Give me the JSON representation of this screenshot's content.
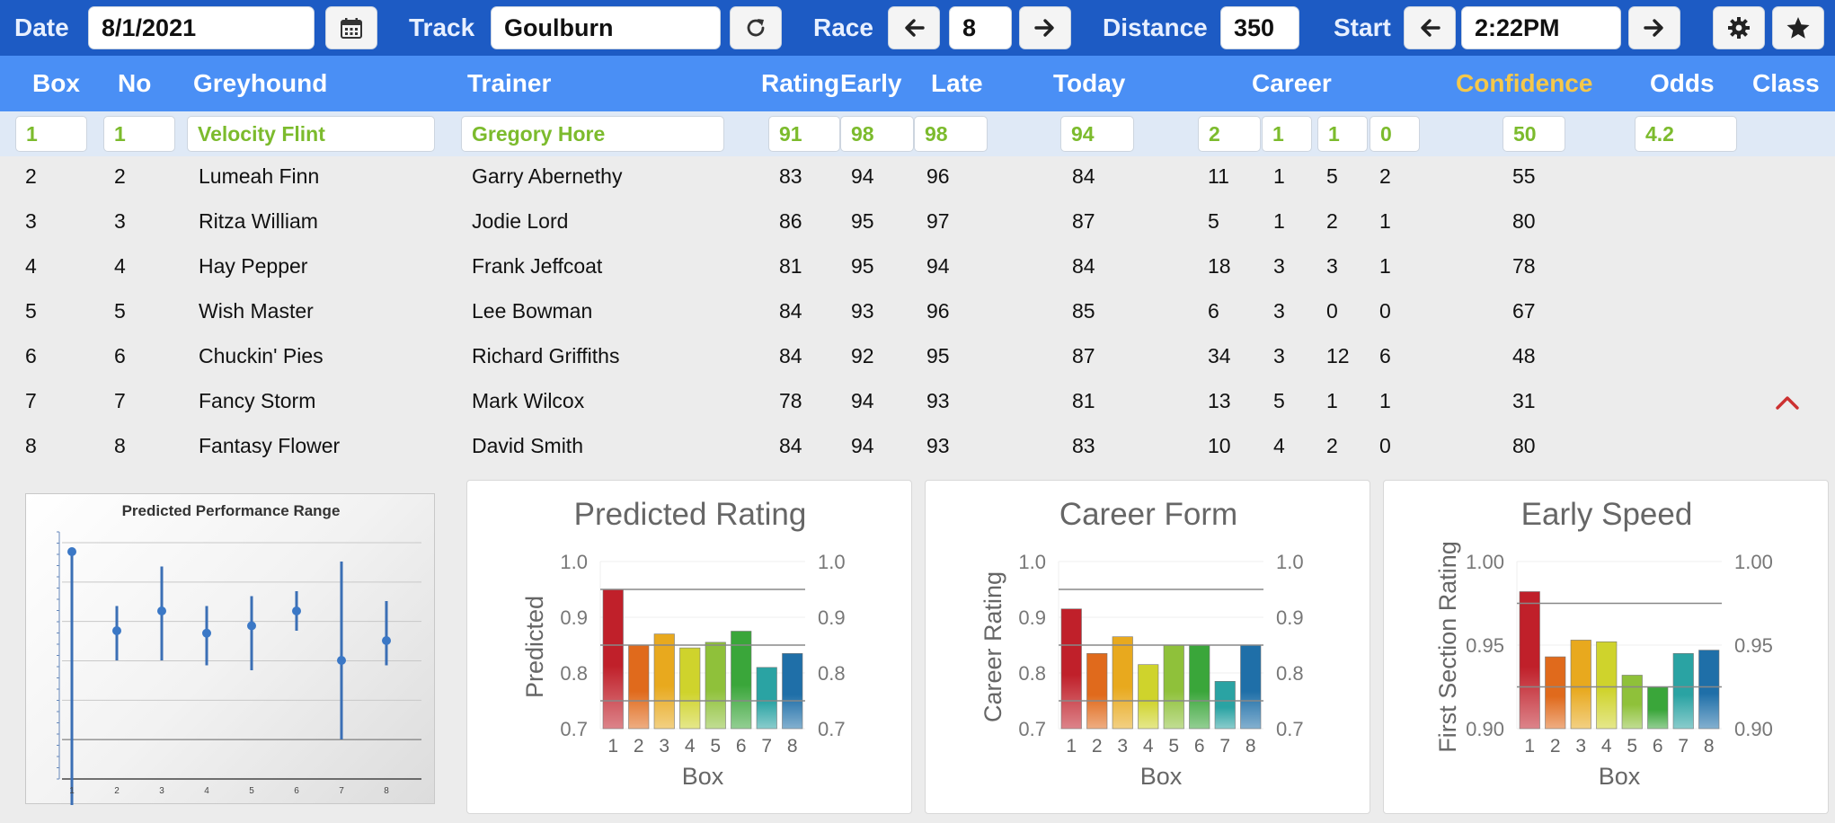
{
  "toolbar": {
    "date_label": "Date",
    "date_value": "8/1/2021",
    "track_label": "Track",
    "track_value": "Goulburn",
    "race_label": "Race",
    "race_value": "8",
    "distance_label": "Distance",
    "distance_value": "350",
    "start_label": "Start",
    "start_value": "2:22PM",
    "icons": [
      "calendar-icon",
      "refresh-icon",
      "arrow-left-icon",
      "arrow-right-icon",
      "gear-icon",
      "star-icon"
    ]
  },
  "columns": {
    "box": "Box",
    "no": "No",
    "greyhound": "Greyhound",
    "trainer": "Trainer",
    "rating": "Rating",
    "early": "Early",
    "late": "Late",
    "today": "Today",
    "career": "Career",
    "confidence": "Confidence",
    "odds": "Odds",
    "class": "Class"
  },
  "runners": [
    {
      "box": "1",
      "no": "1",
      "name": "Velocity Flint",
      "trainer": "Gregory Hore",
      "rating": "91",
      "early": "98",
      "late": "98",
      "today": "94",
      "career": [
        "2",
        "1",
        "1",
        "0"
      ],
      "confidence": "50",
      "odds": "4.2"
    },
    {
      "box": "2",
      "no": "2",
      "name": "Lumeah Finn",
      "trainer": "Garry Abernethy",
      "rating": "83",
      "early": "94",
      "late": "96",
      "today": "84",
      "career": [
        "11",
        "1",
        "5",
        "2"
      ],
      "confidence": "55",
      "odds": ""
    },
    {
      "box": "3",
      "no": "3",
      "name": "Ritza William",
      "trainer": "Jodie Lord",
      "rating": "86",
      "early": "95",
      "late": "97",
      "today": "87",
      "career": [
        "5",
        "1",
        "2",
        "1"
      ],
      "confidence": "80",
      "odds": ""
    },
    {
      "box": "4",
      "no": "4",
      "name": "Hay Pepper",
      "trainer": "Frank Jeffcoat",
      "rating": "81",
      "early": "95",
      "late": "94",
      "today": "84",
      "career": [
        "18",
        "3",
        "3",
        "1"
      ],
      "confidence": "78",
      "odds": ""
    },
    {
      "box": "5",
      "no": "5",
      "name": "Wish Master",
      "trainer": "Lee Bowman",
      "rating": "84",
      "early": "93",
      "late": "96",
      "today": "85",
      "career": [
        "6",
        "3",
        "0",
        "0"
      ],
      "confidence": "67",
      "odds": ""
    },
    {
      "box": "6",
      "no": "6",
      "name": "Chuckin' Pies",
      "trainer": "Richard Griffiths",
      "rating": "84",
      "early": "92",
      "late": "95",
      "today": "87",
      "career": [
        "34",
        "3",
        "12",
        "6"
      ],
      "confidence": "48",
      "odds": ""
    },
    {
      "box": "7",
      "no": "7",
      "name": "Fancy Storm",
      "trainer": "Mark Wilcox",
      "rating": "78",
      "early": "94",
      "late": "93",
      "today": "81",
      "career": [
        "13",
        "5",
        "1",
        "1"
      ],
      "confidence": "31",
      "odds": ""
    },
    {
      "box": "8",
      "no": "8",
      "name": "Fantasy Flower",
      "trainer": "David Smith",
      "rating": "84",
      "early": "94",
      "late": "93",
      "today": "83",
      "career": [
        "10",
        "4",
        "2",
        "0"
      ],
      "confidence": "80",
      "odds": ""
    }
  ],
  "bar_colors": [
    "#c0202a",
    "#e06a1c",
    "#e8a91e",
    "#cfd32c",
    "#8fc13a",
    "#3aa63a",
    "#2aa3a3",
    "#1f6fa8"
  ],
  "chart_data": [
    {
      "type": "scatter",
      "title": "Predicted Performance Range",
      "x": [
        1,
        2,
        3,
        4,
        5,
        6,
        7,
        8
      ],
      "y": [
        0.96,
        0.8,
        0.84,
        0.795,
        0.81,
        0.84,
        0.74,
        0.78
      ],
      "low": [
        0.07,
        0.74,
        0.74,
        0.73,
        0.72,
        0.8,
        0.58,
        0.73
      ],
      "high": [
        0.96,
        0.85,
        0.93,
        0.85,
        0.87,
        0.88,
        0.94,
        0.86
      ],
      "ylim": [
        0.5,
        1.0
      ],
      "grid": true
    },
    {
      "type": "bar",
      "title": "Predicted Rating",
      "xlabel": "Box",
      "ylabel": "Predicted",
      "categories": [
        "1",
        "2",
        "3",
        "4",
        "5",
        "6",
        "7",
        "8"
      ],
      "values": [
        0.95,
        0.85,
        0.87,
        0.845,
        0.855,
        0.875,
        0.81,
        0.835
      ],
      "reference_lines": [
        0.95,
        0.85,
        0.75
      ],
      "ylim": [
        0.7,
        1.0
      ],
      "yticks": [
        "0.7",
        "0.8",
        "0.9",
        "1.0"
      ]
    },
    {
      "type": "bar",
      "title": "Career Form",
      "xlabel": "Box",
      "ylabel": "Career Rating",
      "categories": [
        "1",
        "2",
        "3",
        "4",
        "5",
        "6",
        "7",
        "8"
      ],
      "values": [
        0.915,
        0.835,
        0.865,
        0.815,
        0.85,
        0.85,
        0.785,
        0.85
      ],
      "reference_lines": [
        0.95,
        0.85,
        0.75
      ],
      "ylim": [
        0.7,
        1.0
      ],
      "yticks": [
        "0.7",
        "0.8",
        "0.9",
        "1.0"
      ]
    },
    {
      "type": "bar",
      "title": "Early Speed",
      "xlabel": "Box",
      "ylabel": "First Section Rating",
      "categories": [
        "1",
        "2",
        "3",
        "4",
        "5",
        "6",
        "7",
        "8"
      ],
      "values": [
        0.982,
        0.943,
        0.953,
        0.952,
        0.932,
        0.925,
        0.945,
        0.947
      ],
      "reference_lines": [
        0.975,
        0.925
      ],
      "ylim": [
        0.9,
        1.0
      ],
      "yticks": [
        "0.90",
        "0.95",
        "1.00"
      ]
    }
  ]
}
